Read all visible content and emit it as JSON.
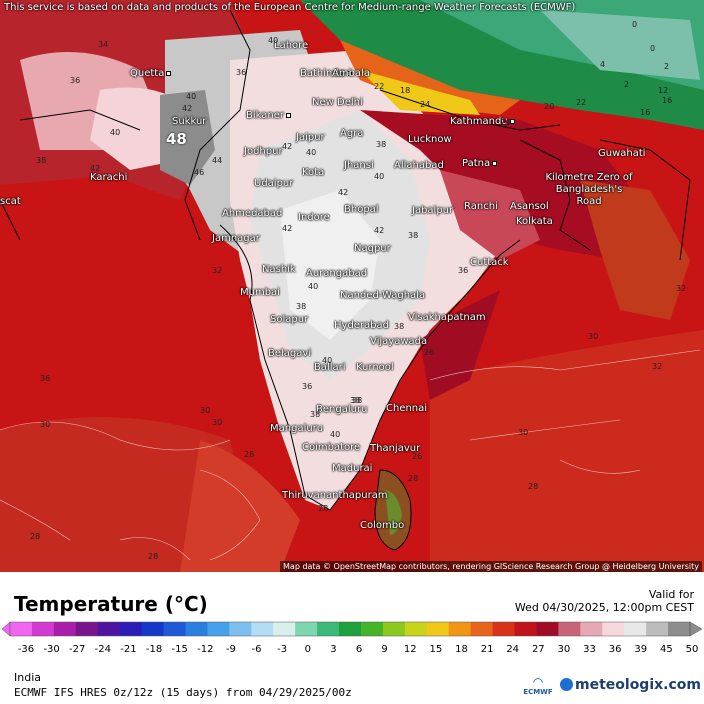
{
  "map": {
    "notice": "This service is based on data and products of the European Centre for Medium-range Weather Forecasts (ECMWF)",
    "credit": "Map data © OpenStreetMap contributors, rendering GIScience Research Group @ Heidelberg University",
    "max_value": "48",
    "cities": [
      {
        "name": "Quetta",
        "label": "Quetta"
      },
      {
        "name": "Lahore",
        "label": "Lahore"
      },
      {
        "name": "Bathinda",
        "label": "Bathinda"
      },
      {
        "name": "Ambala",
        "label": "Ambala"
      },
      {
        "name": "New Delhi",
        "label": "New Delhi"
      },
      {
        "name": "Sukkur",
        "label": "Sukkur"
      },
      {
        "name": "Bikaner",
        "label": "Bikaner"
      },
      {
        "name": "Kathmandu",
        "label": "Kathmandu"
      },
      {
        "name": "Jaipur",
        "label": "Jaipur"
      },
      {
        "name": "Agra",
        "label": "Agra"
      },
      {
        "name": "Lucknow",
        "label": "Lucknow"
      },
      {
        "name": "Jodhpur",
        "label": "Jodhpur"
      },
      {
        "name": "Jhansi",
        "label": "Jhansi"
      },
      {
        "name": "Allahabad",
        "label": "Allahabad"
      },
      {
        "name": "Patna",
        "label": "Patna"
      },
      {
        "name": "Guwahati",
        "label": "Guwahati"
      },
      {
        "name": "Karachi",
        "label": "Karachi"
      },
      {
        "name": "Kota",
        "label": "Kota"
      },
      {
        "name": "Udaipur",
        "label": "Udaipur"
      },
      {
        "name": "Zero of Bangladesh's Road",
        "label": "Kilometre Zero of Bangladesh's Road"
      },
      {
        "name": "Ahmedabad",
        "label": "Ahmedabad"
      },
      {
        "name": "Bhopal",
        "label": "Bhopal"
      },
      {
        "name": "Jabalpur",
        "label": "Jabalpur"
      },
      {
        "name": "Ranchi",
        "label": "Ranchi"
      },
      {
        "name": "Asansol",
        "label": "Asansol"
      },
      {
        "name": "Indore",
        "label": "Indore"
      },
      {
        "name": "Jamnagar",
        "label": "Jamnagar"
      },
      {
        "name": "Kolkata",
        "label": "Kolkata"
      },
      {
        "name": "Nagpur",
        "label": "Nagpur"
      },
      {
        "name": "Nashik",
        "label": "Nashik"
      },
      {
        "name": "Aurangabad",
        "label": "Aurangabad"
      },
      {
        "name": "Cuttack",
        "label": "Cuttack"
      },
      {
        "name": "Mumbai",
        "label": "Mumbai"
      },
      {
        "name": "Nanded-Waghala",
        "label": "Nanded-Waghala"
      },
      {
        "name": "Solapur",
        "label": "Solapur"
      },
      {
        "name": "Visakhapatnam",
        "label": "Visakhapatnam"
      },
      {
        "name": "Hyderabad",
        "label": "Hyderabad"
      },
      {
        "name": "Vijayawada",
        "label": "Vijayawada"
      },
      {
        "name": "Belagavi",
        "label": "Belagavi"
      },
      {
        "name": "Ballari",
        "label": "Ballari"
      },
      {
        "name": "Kurnool",
        "label": "Kurnool"
      },
      {
        "name": "Bengaluru",
        "label": "Bengaluru"
      },
      {
        "name": "Chennai",
        "label": "Chennai"
      },
      {
        "name": "Mangaluru",
        "label": "Mangaluru"
      },
      {
        "name": "Coimbatore",
        "label": "Coimbatore"
      },
      {
        "name": "Thanjavur",
        "label": "Thanjavur"
      },
      {
        "name": "Madurai",
        "label": "Madurai"
      },
      {
        "name": "Thiruvananthapuram",
        "label": "Thiruvananthapuram"
      },
      {
        "name": "Colombo",
        "label": "Colombo"
      },
      {
        "name": "Muscat",
        "label": "scat"
      }
    ],
    "contour_values": [
      "34",
      "36",
      "36",
      "40",
      "40",
      "38",
      "42",
      "42",
      "40",
      "42",
      "40",
      "42",
      "38",
      "40",
      "38",
      "36",
      "38",
      "42",
      "44",
      "46",
      "40",
      "38",
      "42",
      "40",
      "38",
      "36",
      "38",
      "40",
      "38",
      "36",
      "32",
      "32",
      "30",
      "30",
      "28",
      "28",
      "28",
      "28",
      "28",
      "26",
      "28",
      "30",
      "30",
      "32",
      "30",
      "22",
      "4",
      "2",
      "2",
      "0",
      "0",
      "26",
      "24",
      "18",
      "20",
      "22",
      "16",
      "12",
      "16",
      "26"
    ]
  },
  "footer": {
    "title": "Temperature (°C)",
    "valid_label": "Valid for",
    "valid_date": "Wed 04/30/2025, 12:00pm CEST",
    "region": "India",
    "model": "ECMWF IFS HRES 0z/12z (15 days) from  04/29/2025/00z",
    "ecmwf_label": "ECMWF",
    "brand": "meteologix.com"
  },
  "scale": {
    "ticks": [
      "-36",
      "-30",
      "-27",
      "-24",
      "-21",
      "-18",
      "-15",
      "-12",
      "-9",
      "-6",
      "-3",
      "0",
      "3",
      "6",
      "9",
      "12",
      "15",
      "18",
      "21",
      "24",
      "27",
      "30",
      "33",
      "36",
      "39",
      "45",
      "50"
    ],
    "colors": [
      "#f066f0",
      "#d23ad2",
      "#a81ea8",
      "#7a148c",
      "#4e14a0",
      "#2a1cb4",
      "#1438c8",
      "#1e5ad6",
      "#2c7ee0",
      "#46a0ea",
      "#7cc0f0",
      "#b4dcf4",
      "#d8f0ec",
      "#7ed6b0",
      "#3cb878",
      "#1ea03c",
      "#46b42a",
      "#8cc81e",
      "#c8d41a",
      "#f0c818",
      "#f09614",
      "#e8641a",
      "#d83218",
      "#c0141a",
      "#a00c28",
      "#c86478",
      "#e6a8b4",
      "#f4d8dc",
      "#e8e8e8",
      "#bcbcbc",
      "#8c8c8c"
    ]
  }
}
